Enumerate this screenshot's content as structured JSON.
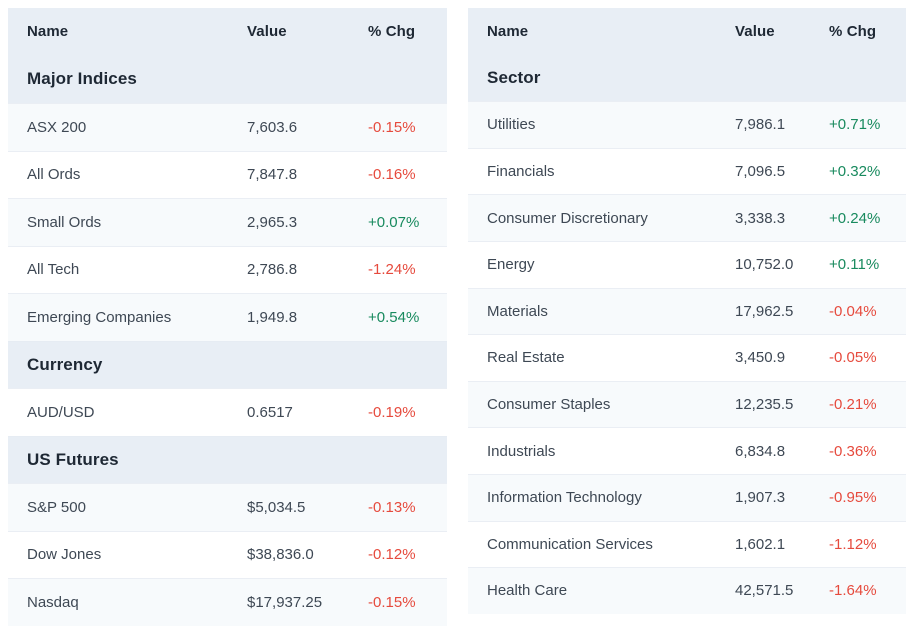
{
  "colors": {
    "header_bg": "#e8eef5",
    "row_tint": "#f7fafc",
    "divider": "#eaeef4",
    "header_text": "#1e2834",
    "body_text": "#3e4854",
    "positive": "#188a5e",
    "negative": "#e64a3d"
  },
  "tables": [
    {
      "id": "markets-summary",
      "columns": [
        "Name",
        "Value",
        "% Chg"
      ],
      "sections": [
        {
          "title": "Major Indices",
          "rows": [
            {
              "name": "ASX 200",
              "value": "7,603.6",
              "chg": "-0.15%",
              "dir": "down"
            },
            {
              "name": "All Ords",
              "value": "7,847.8",
              "chg": "-0.16%",
              "dir": "down"
            },
            {
              "name": "Small Ords",
              "value": "2,965.3",
              "chg": "+0.07%",
              "dir": "up"
            },
            {
              "name": "All Tech",
              "value": "2,786.8",
              "chg": "-1.24%",
              "dir": "down"
            },
            {
              "name": "Emerging Companies",
              "value": "1,949.8",
              "chg": "+0.54%",
              "dir": "up"
            }
          ]
        },
        {
          "title": "Currency",
          "rows": [
            {
              "name": "AUD/USD",
              "value": "0.6517",
              "chg": "-0.19%",
              "dir": "down"
            }
          ]
        },
        {
          "title": "US Futures",
          "rows": [
            {
              "name": "S&P 500",
              "value": "$5,034.5",
              "chg": "-0.13%",
              "dir": "down"
            },
            {
              "name": "Dow Jones",
              "value": "$38,836.0",
              "chg": "-0.12%",
              "dir": "down"
            },
            {
              "name": "Nasdaq",
              "value": "$17,937.25",
              "chg": "-0.15%",
              "dir": "down"
            }
          ]
        }
      ]
    },
    {
      "id": "sectors-summary",
      "columns": [
        "Name",
        "Value",
        "% Chg"
      ],
      "sections": [
        {
          "title": "Sector",
          "rows": [
            {
              "name": "Utilities",
              "value": "7,986.1",
              "chg": "+0.71%",
              "dir": "up"
            },
            {
              "name": "Financials",
              "value": "7,096.5",
              "chg": "+0.32%",
              "dir": "up"
            },
            {
              "name": "Consumer Discretionary",
              "value": "3,338.3",
              "chg": "+0.24%",
              "dir": "up"
            },
            {
              "name": "Energy",
              "value": "10,752.0",
              "chg": "+0.11%",
              "dir": "up"
            },
            {
              "name": "Materials",
              "value": "17,962.5",
              "chg": "-0.04%",
              "dir": "down"
            },
            {
              "name": "Real Estate",
              "value": "3,450.9",
              "chg": "-0.05%",
              "dir": "down"
            },
            {
              "name": "Consumer Staples",
              "value": "12,235.5",
              "chg": "-0.21%",
              "dir": "down"
            },
            {
              "name": "Industrials",
              "value": "6,834.8",
              "chg": "-0.36%",
              "dir": "down"
            },
            {
              "name": "Information Technology",
              "value": "1,907.3",
              "chg": "-0.95%",
              "dir": "down"
            },
            {
              "name": "Communication Services",
              "value": "1,602.1",
              "chg": "-1.12%",
              "dir": "down"
            },
            {
              "name": "Health Care",
              "value": "42,571.5",
              "chg": "-1.64%",
              "dir": "down"
            }
          ]
        }
      ]
    }
  ]
}
